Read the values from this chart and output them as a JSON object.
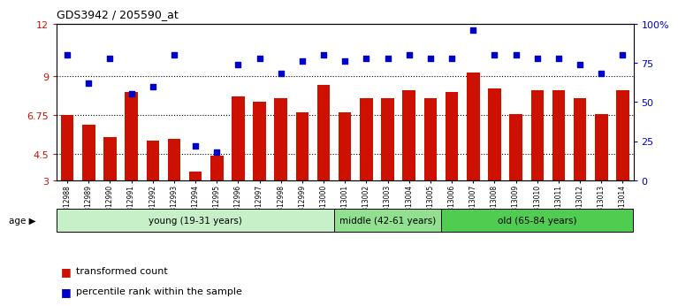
{
  "title": "GDS3942 / 205590_at",
  "samples": [
    "GSM812988",
    "GSM812989",
    "GSM812990",
    "GSM812991",
    "GSM812992",
    "GSM812993",
    "GSM812994",
    "GSM812995",
    "GSM812996",
    "GSM812997",
    "GSM812998",
    "GSM812999",
    "GSM813000",
    "GSM813001",
    "GSM813002",
    "GSM813003",
    "GSM813004",
    "GSM813005",
    "GSM813006",
    "GSM813007",
    "GSM813008",
    "GSM813009",
    "GSM813010",
    "GSM813011",
    "GSM813012",
    "GSM813013",
    "GSM813014"
  ],
  "bar_values": [
    6.75,
    6.2,
    5.5,
    8.1,
    5.3,
    5.4,
    3.5,
    4.4,
    7.8,
    7.5,
    7.7,
    6.9,
    8.5,
    6.9,
    7.7,
    7.7,
    8.2,
    7.7,
    8.1,
    9.2,
    8.3,
    6.8,
    8.2,
    8.2,
    7.7,
    6.8,
    8.2
  ],
  "scatter_pct": [
    80,
    62,
    78,
    55,
    60,
    80,
    22,
    18,
    74,
    78,
    68,
    76,
    80,
    76,
    78,
    78,
    80,
    78,
    78,
    96,
    80,
    80,
    78,
    78,
    74,
    68,
    80
  ],
  "groups": [
    {
      "label": "young (19-31 years)",
      "start": 0,
      "end": 13,
      "color": "#c8f0c8"
    },
    {
      "label": "middle (42-61 years)",
      "start": 13,
      "end": 18,
      "color": "#90e090"
    },
    {
      "label": "old (65-84 years)",
      "start": 18,
      "end": 27,
      "color": "#50cc50"
    }
  ],
  "bar_color": "#cc1100",
  "scatter_color": "#0000cc",
  "ylim_left": [
    3,
    12
  ],
  "ylim_right": [
    0,
    100
  ],
  "yticks_left": [
    3,
    4.5,
    6.75,
    9,
    12
  ],
  "yticks_right": [
    0,
    25,
    50,
    75,
    100
  ],
  "ytick_labels_right": [
    "0",
    "25",
    "50",
    "75",
    "100%"
  ],
  "hlines": [
    4.5,
    6.75,
    9
  ],
  "background_color": "#ffffff",
  "legend": [
    {
      "label": "transformed count",
      "color": "#cc1100"
    },
    {
      "label": "percentile rank within the sample",
      "color": "#0000cc"
    }
  ]
}
